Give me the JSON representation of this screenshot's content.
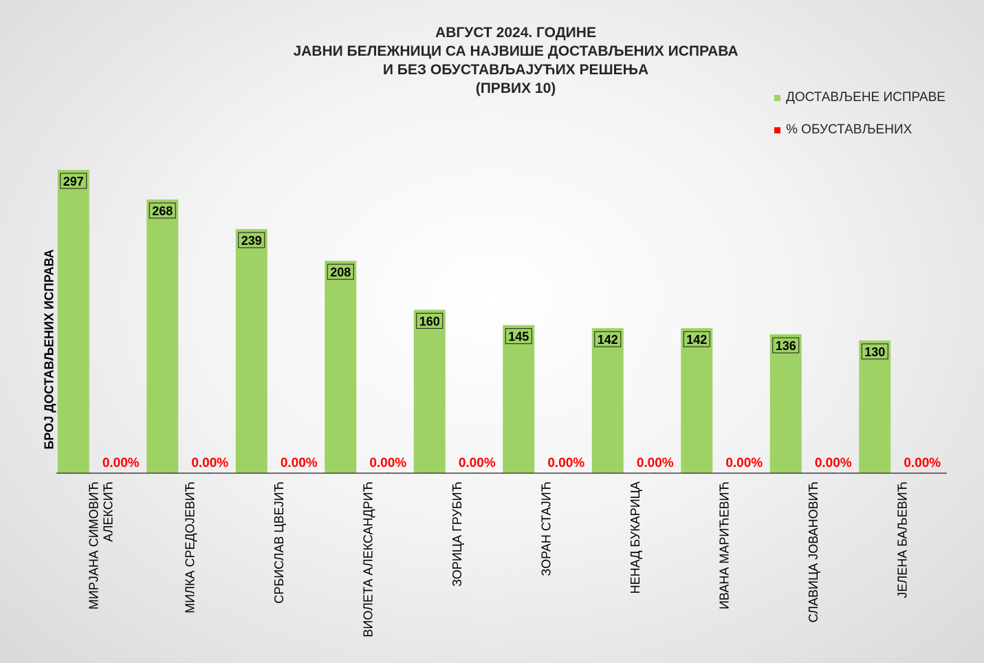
{
  "chart_data": {
    "type": "bar",
    "title_lines": [
      "АВГУСТ 2024. ГОДИНЕ",
      "ЈАВНИ БЕЛЕЖНИЦИ СА НАЈВИШЕ ДОСТАВЉЕНИХ ИСПРАВА",
      "И БЕЗ ОБУСТАВЉАЈУЋИХ РЕШЕЊА",
      "(ПРВИХ 10)"
    ],
    "ylabel": "БРОЈ ДОСТАВЉЕНИХ ИСПРАВА",
    "ylim": [
      0,
      340
    ],
    "grid": false,
    "legend_position": "top-right",
    "categories": [
      [
        "МИРЈАНА СИМОВИЋ",
        "АЛЕКСИЋ"
      ],
      [
        "МИЛКА СРЕДОЈЕВИЋ"
      ],
      [
        "СРБИСЛАВ ЦВЕЈИЋ"
      ],
      [
        "ВИОЛЕТА АЛЕКСАНДРИЋ"
      ],
      [
        "ЗОРИЦА ГРУБИЋ"
      ],
      [
        "ЗОРАН СТАЈИЋ"
      ],
      [
        "НЕНАД БУКАРИЦА"
      ],
      [
        "ИВАНА МАРИЋЕВИЋ"
      ],
      [
        "СЛАВИЦА ЈОВАНОВИЋ"
      ],
      [
        "ЈЕЛЕНА БАЉЕВИЋ"
      ]
    ],
    "series": [
      {
        "name": "ДОСТАВЉЕНЕ  ИСПРАВЕ",
        "color": "#9fd264",
        "values": [
          297,
          268,
          239,
          208,
          160,
          145,
          142,
          142,
          136,
          130
        ],
        "labels": [
          "297",
          "268",
          "239",
          "208",
          "160",
          "145",
          "142",
          "142",
          "136",
          "130"
        ]
      },
      {
        "name": "% ОБУСТАВЉЕНИХ",
        "color": "#ff0000",
        "values": [
          0,
          0,
          0,
          0,
          0,
          0,
          0,
          0,
          0,
          0
        ],
        "labels": [
          "0.00%",
          "0.00%",
          "0.00%",
          "0.00%",
          "0.00%",
          "0.00%",
          "0.00%",
          "0.00%",
          "0.00%",
          "0.00%"
        ]
      }
    ]
  }
}
